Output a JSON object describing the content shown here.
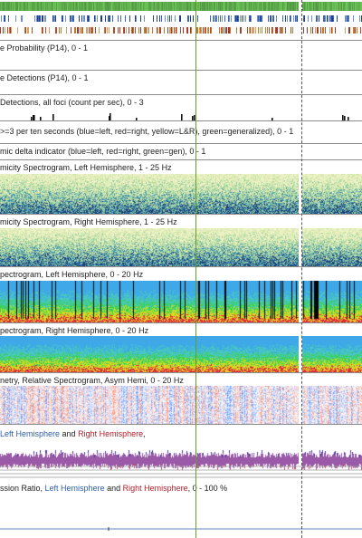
{
  "panels": {
    "probability": {
      "title": "e Probability (P14), 0 - 1"
    },
    "detections": {
      "title": "e Detections (P14), 0 - 1"
    },
    "foci": {
      "title": "Detections, all foci (count per sec), 0 - 3"
    },
    "rhythmic": {
      "title": ">=3 per ten seconds (blue=left, red=right, yellow=L&R), green=generalized),  0 - 1"
    },
    "delta": {
      "title": "mic delta indicator (blue=left, red=right, green=gen),  0 - 1"
    },
    "rhythm_left": {
      "title": "micity Spectrogram, Left Hemisphere, 1 - 25 Hz"
    },
    "rhythm_right": {
      "title": "micity Spectrogram, Right Hemisphere, 1 - 25 Hz"
    },
    "spec_left": {
      "title": "pectrogram, Left Hemisphere, 0 - 20 Hz"
    },
    "spec_right": {
      "title": "pectrogram, Right Hemisphere, 0 - 20 Hz"
    },
    "asym": {
      "title": "netry, Relative Spectrogram, Asym Hemi, 0 - 20 Hz"
    },
    "aeeg": {
      "title_a": "Left Hemisphere",
      "title_b": " and ",
      "title_c": "Right Hemisphere",
      "title_d": ","
    },
    "suppression": {
      "title_a": "ssion Ratio, ",
      "title_b": "Left Hemisphere",
      "title_c": " and ",
      "title_d": "Right Hemisphere",
      "title_e": ",  0 - 100 %"
    }
  },
  "colors": {
    "left": "#2f5fa8",
    "right": "#b0202a",
    "cursor": "#6a9a2a",
    "aeeg_trace": "#9a5aa8"
  }
}
